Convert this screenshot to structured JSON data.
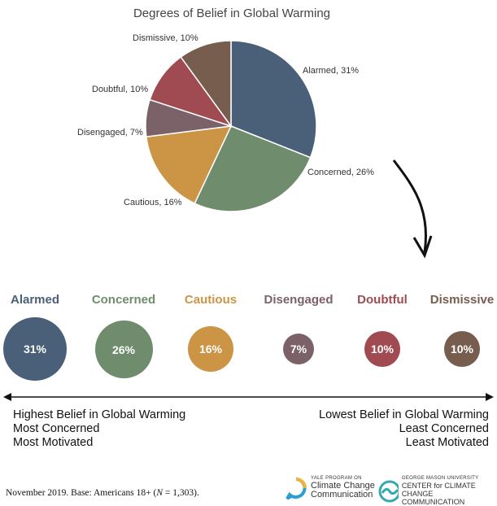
{
  "chart_data": {
    "type": "pie",
    "title": "Degrees of Belief in Global Warming",
    "slices": [
      {
        "label": "Alarmed, 31%",
        "name": "Alarmed",
        "value": 31,
        "color": "#4a6079"
      },
      {
        "label": "Concerned, 26%",
        "name": "Concerned",
        "value": 26,
        "color": "#6f8d6d"
      },
      {
        "label": "Cautious, 16%",
        "name": "Cautious",
        "value": 16,
        "color": "#cc9445"
      },
      {
        "label": "Disengaged, 7%",
        "name": "Disengaged",
        "value": 7,
        "color": "#7b6268"
      },
      {
        "label": "Doubtful, 10%",
        "name": "Doubtful",
        "value": 10,
        "color": "#a04a51"
      },
      {
        "label": "Dismissive, 10%",
        "name": "Dismissive",
        "value": 10,
        "color": "#765d4d"
      }
    ]
  },
  "segments": [
    {
      "name": "Alarmed",
      "pct": "31%",
      "color": "#4a6079"
    },
    {
      "name": "Concerned",
      "pct": "26%",
      "color": "#6f8d6d"
    },
    {
      "name": "Cautious",
      "pct": "16%",
      "color": "#cc9445"
    },
    {
      "name": "Disengaged",
      "pct": "7%",
      "color": "#7b6268"
    },
    {
      "name": "Doubtful",
      "pct": "10%",
      "color": "#a04a51"
    },
    {
      "name": "Dismissive",
      "pct": "10%",
      "color": "#765d4d"
    }
  ],
  "left_side": {
    "line1": "Highest Belief in Global Warming",
    "line2": "Most Concerned",
    "line3": "Most Motivated"
  },
  "right_side": {
    "line1": "Lowest Belief in Global Warming",
    "line2": "Least Concerned",
    "line3": "Least Motivated"
  },
  "footnote": {
    "prefix": "November 2019. Base: Americans 18+ (",
    "n_symbol": "N",
    "suffix": " = 1,303)."
  },
  "logos": {
    "yale": {
      "small": "YALE PROGRAM ON",
      "line1": "Climate Change",
      "line2": "Communication",
      "accent": "#f2b233",
      "accent2": "#2a9fd6"
    },
    "gmu": {
      "small": "GEORGE MASON UNIVERSITY",
      "line1": "CENTER for CLIMATE CHANGE",
      "line2": "COMMUNICATION",
      "accent": "#36a8b0"
    }
  }
}
